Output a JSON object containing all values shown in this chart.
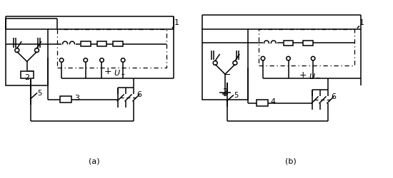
{
  "background": "#ffffff",
  "line_color": "#000000",
  "figsize": [
    5.5,
    2.5
  ],
  "dpi": 100,
  "lw": 1.1
}
